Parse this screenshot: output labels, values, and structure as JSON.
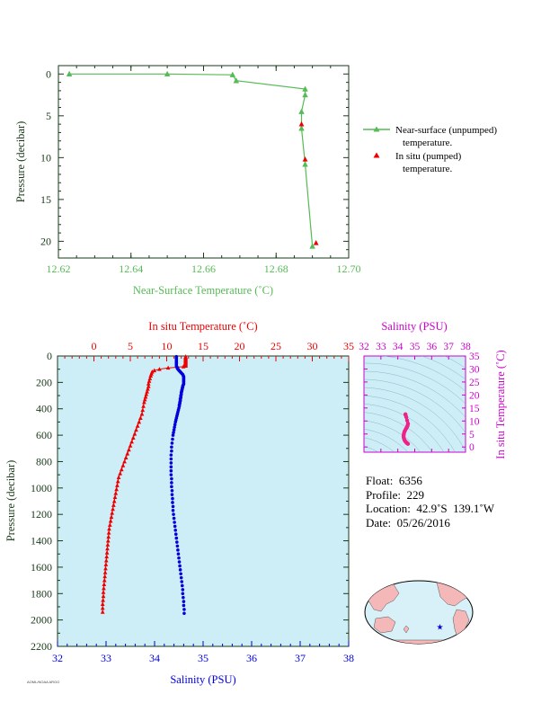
{
  "colors": {
    "near_surface": "#55bb55",
    "insitu_temp": "#ee0000",
    "salinity": "#0000dd",
    "ts_axis": "#cc00cc",
    "axis_dark": "#1a3a1a",
    "panel_bg": "#cdeef7",
    "land": "#f5b8b8",
    "ocean_map": "#d8f0f8"
  },
  "chart_data": [
    {
      "type": "line",
      "xlabel": "Near-Surface Temperature (˚C)",
      "ylabel": "Pressure (decibar)",
      "xlim": [
        12.62,
        12.7
      ],
      "ylim": [
        22,
        -1
      ],
      "xticks": [
        "12.62",
        "12.64",
        "12.66",
        "12.68",
        "12.70"
      ],
      "yticks": [
        "0",
        "5",
        "10",
        "15",
        "20"
      ],
      "legend_position": "right",
      "series": [
        {
          "name": "Near-surface (unpumped) temperature.",
          "marker": "triangle",
          "points": [
            [
              12.623,
              0.0
            ],
            [
              12.65,
              0.0
            ],
            [
              12.668,
              0.1
            ],
            [
              12.669,
              0.8
            ],
            [
              12.688,
              1.8
            ],
            [
              12.688,
              2.5
            ],
            [
              12.687,
              4.5
            ],
            [
              12.687,
              6.5
            ],
            [
              12.688,
              10.8
            ],
            [
              12.69,
              20.6
            ]
          ]
        },
        {
          "name": "In situ (pumped) temperature.",
          "marker": "triangle",
          "points": [
            [
              12.687,
              6.0
            ],
            [
              12.688,
              10.2
            ],
            [
              12.691,
              20.2
            ]
          ]
        }
      ]
    },
    {
      "type": "line",
      "ylabel": "Pressure (decibar)",
      "ylim": [
        2200,
        0
      ],
      "yticks": [
        "0",
        "200",
        "400",
        "600",
        "800",
        "1000",
        "1200",
        "1400",
        "1600",
        "1800",
        "2000",
        "2200"
      ],
      "top_axis": {
        "label": "In situ Temperature (˚C)",
        "range": [
          -5,
          35
        ],
        "ticks": [
          "0",
          "5",
          "10",
          "15",
          "20",
          "25",
          "30",
          "35"
        ]
      },
      "bottom_axis": {
        "label": "Salinity (PSU)",
        "range": [
          32,
          38
        ],
        "ticks": [
          "32",
          "33",
          "34",
          "35",
          "36",
          "37",
          "38"
        ]
      },
      "series": [
        {
          "name": "In situ Temperature",
          "axis": "top",
          "points": [
            [
              12.6,
              5
            ],
            [
              12.6,
              10
            ],
            [
              12.6,
              15
            ],
            [
              12.6,
              20
            ],
            [
              12.6,
              25
            ],
            [
              12.6,
              30
            ],
            [
              12.6,
              35
            ],
            [
              12.6,
              40
            ],
            [
              12.6,
              45
            ],
            [
              12.6,
              50
            ],
            [
              12.6,
              55
            ],
            [
              12.6,
              60
            ],
            [
              12.6,
              65
            ],
            [
              12.6,
              70
            ],
            [
              12.6,
              75
            ],
            [
              12.3,
              80
            ],
            [
              11.5,
              85
            ],
            [
              10.2,
              90
            ],
            [
              9.0,
              100
            ],
            [
              8.3,
              110
            ],
            [
              8.0,
              120
            ],
            [
              7.9,
              135
            ],
            [
              7.8,
              150
            ],
            [
              7.7,
              170
            ],
            [
              7.6,
              190
            ],
            [
              7.5,
              210
            ],
            [
              7.5,
              230
            ],
            [
              7.4,
              250
            ],
            [
              7.3,
              270
            ],
            [
              7.2,
              290
            ],
            [
              7.1,
              310
            ],
            [
              7.0,
              330
            ],
            [
              6.9,
              350
            ],
            [
              6.8,
              380
            ],
            [
              6.7,
              410
            ],
            [
              6.6,
              440
            ],
            [
              6.4,
              470
            ],
            [
              6.2,
              500
            ],
            [
              6.0,
              530
            ],
            [
              5.8,
              560
            ],
            [
              5.6,
              590
            ],
            [
              5.4,
              620
            ],
            [
              5.2,
              650
            ],
            [
              5.0,
              680
            ],
            [
              4.8,
              710
            ],
            [
              4.6,
              740
            ],
            [
              4.4,
              770
            ],
            [
              4.2,
              800
            ],
            [
              4.0,
              830
            ],
            [
              3.8,
              860
            ],
            [
              3.6,
              890
            ],
            [
              3.4,
              920
            ],
            [
              3.3,
              950
            ],
            [
              3.2,
              980
            ],
            [
              3.1,
              1010
            ],
            [
              3.0,
              1040
            ],
            [
              2.9,
              1070
            ],
            [
              2.8,
              1100
            ],
            [
              2.7,
              1130
            ],
            [
              2.6,
              1160
            ],
            [
              2.5,
              1190
            ],
            [
              2.4,
              1220
            ],
            [
              2.3,
              1250
            ],
            [
              2.2,
              1280
            ],
            [
              2.1,
              1310
            ],
            [
              2.05,
              1340
            ],
            [
              2.0,
              1370
            ],
            [
              1.95,
              1400
            ],
            [
              1.9,
              1430
            ],
            [
              1.85,
              1460
            ],
            [
              1.8,
              1490
            ],
            [
              1.75,
              1520
            ],
            [
              1.7,
              1550
            ],
            [
              1.65,
              1580
            ],
            [
              1.6,
              1610
            ],
            [
              1.55,
              1640
            ],
            [
              1.5,
              1670
            ],
            [
              1.45,
              1700
            ],
            [
              1.4,
              1730
            ],
            [
              1.35,
              1760
            ],
            [
              1.3,
              1790
            ],
            [
              1.3,
              1820
            ],
            [
              1.25,
              1850
            ],
            [
              1.2,
              1880
            ],
            [
              1.2,
              1910
            ],
            [
              1.2,
              1940
            ]
          ]
        },
        {
          "name": "Salinity",
          "axis": "bottom",
          "points": [
            [
              34.45,
              5
            ],
            [
              34.45,
              12
            ],
            [
              34.45,
              20
            ],
            [
              34.45,
              28
            ],
            [
              34.45,
              36
            ],
            [
              34.45,
              44
            ],
            [
              34.45,
              52
            ],
            [
              34.45,
              60
            ],
            [
              34.45,
              68
            ],
            [
              34.45,
              76
            ],
            [
              34.46,
              84
            ],
            [
              34.47,
              92
            ],
            [
              34.48,
              100
            ],
            [
              34.5,
              108
            ],
            [
              34.52,
              116
            ],
            [
              34.54,
              124
            ],
            [
              34.56,
              132
            ],
            [
              34.58,
              140
            ],
            [
              34.59,
              148
            ],
            [
              34.6,
              156
            ],
            [
              34.6,
              164
            ],
            [
              34.6,
              172
            ],
            [
              34.6,
              180
            ],
            [
              34.6,
              188
            ],
            [
              34.6,
              196
            ],
            [
              34.6,
              204
            ],
            [
              34.6,
              212
            ],
            [
              34.59,
              220
            ],
            [
              34.58,
              228
            ],
            [
              34.58,
              236
            ],
            [
              34.57,
              244
            ],
            [
              34.57,
              252
            ],
            [
              34.56,
              260
            ],
            [
              34.56,
              268
            ],
            [
              34.55,
              276
            ],
            [
              34.55,
              284
            ],
            [
              34.55,
              292
            ],
            [
              34.54,
              300
            ],
            [
              34.54,
              308
            ],
            [
              34.54,
              316
            ],
            [
              34.53,
              324
            ],
            [
              34.53,
              332
            ],
            [
              34.53,
              340
            ],
            [
              34.52,
              350
            ],
            [
              34.52,
              360
            ],
            [
              34.51,
              370
            ],
            [
              34.51,
              380
            ],
            [
              34.5,
              395
            ],
            [
              34.49,
              410
            ],
            [
              34.48,
              425
            ],
            [
              34.47,
              440
            ],
            [
              34.46,
              455
            ],
            [
              34.45,
              470
            ],
            [
              34.44,
              485
            ],
            [
              34.43,
              500
            ],
            [
              34.42,
              520
            ],
            [
              34.41,
              540
            ],
            [
              34.4,
              560
            ],
            [
              34.39,
              580
            ],
            [
              34.38,
              600
            ],
            [
              34.37,
              630
            ],
            [
              34.36,
              660
            ],
            [
              34.35,
              690
            ],
            [
              34.35,
              720
            ],
            [
              34.34,
              750
            ],
            [
              34.34,
              780
            ],
            [
              34.34,
              810
            ],
            [
              34.34,
              840
            ],
            [
              34.34,
              870
            ],
            [
              34.34,
              900
            ],
            [
              34.35,
              930
            ],
            [
              34.35,
              960
            ],
            [
              34.35,
              990
            ],
            [
              34.36,
              1020
            ],
            [
              34.36,
              1050
            ],
            [
              34.37,
              1080
            ],
            [
              34.37,
              1110
            ],
            [
              34.38,
              1140
            ],
            [
              34.38,
              1170
            ],
            [
              34.39,
              1200
            ],
            [
              34.4,
              1230
            ],
            [
              34.41,
              1260
            ],
            [
              34.42,
              1290
            ],
            [
              34.43,
              1320
            ],
            [
              34.44,
              1350
            ],
            [
              34.45,
              1380
            ],
            [
              34.46,
              1410
            ],
            [
              34.47,
              1440
            ],
            [
              34.48,
              1470
            ],
            [
              34.49,
              1500
            ],
            [
              34.5,
              1530
            ],
            [
              34.51,
              1560
            ],
            [
              34.52,
              1590
            ],
            [
              34.53,
              1620
            ],
            [
              34.54,
              1650
            ],
            [
              34.55,
              1680
            ],
            [
              34.56,
              1710
            ],
            [
              34.57,
              1740
            ],
            [
              34.58,
              1770
            ],
            [
              34.58,
              1800
            ],
            [
              34.59,
              1830
            ],
            [
              34.6,
              1860
            ],
            [
              34.6,
              1890
            ],
            [
              34.61,
              1920
            ],
            [
              34.61,
              1950
            ]
          ]
        }
      ]
    },
    {
      "type": "scatter",
      "xlabel": "Salinity (PSU)",
      "ylabel": "In situ Temperature (˚C)",
      "xlim": [
        32,
        38
      ],
      "ylim": [
        -2,
        35
      ],
      "xticks": [
        "32",
        "33",
        "34",
        "35",
        "36",
        "37",
        "38"
      ],
      "yticks": [
        "0",
        "5",
        "10",
        "15",
        "20",
        "25",
        "30",
        "35"
      ],
      "points": [
        [
          34.45,
          12.6
        ],
        [
          34.46,
          12.3
        ],
        [
          34.5,
          11.5
        ],
        [
          34.55,
          10.2
        ],
        [
          34.6,
          9.0
        ],
        [
          34.58,
          8.3
        ],
        [
          34.55,
          7.8
        ],
        [
          34.52,
          7.4
        ],
        [
          34.48,
          7.0
        ],
        [
          34.44,
          6.5
        ],
        [
          34.4,
          6.0
        ],
        [
          34.37,
          5.4
        ],
        [
          34.35,
          4.8
        ],
        [
          34.34,
          4.2
        ],
        [
          34.35,
          3.6
        ],
        [
          34.37,
          3.1
        ],
        [
          34.4,
          2.6
        ],
        [
          34.44,
          2.2
        ],
        [
          34.48,
          1.9
        ],
        [
          34.52,
          1.6
        ],
        [
          34.56,
          1.4
        ],
        [
          34.6,
          1.2
        ]
      ]
    }
  ],
  "info": {
    "float": "Float:  6356",
    "profile": "Profile:  229",
    "location": "Location:  42.9˚S  139.1˚W",
    "date": "Date:  05/26/2016"
  },
  "map": {
    "marker_lon": -139.1,
    "marker_lat": -42.9
  },
  "footer_code": "AOML/NOAA ARGO"
}
